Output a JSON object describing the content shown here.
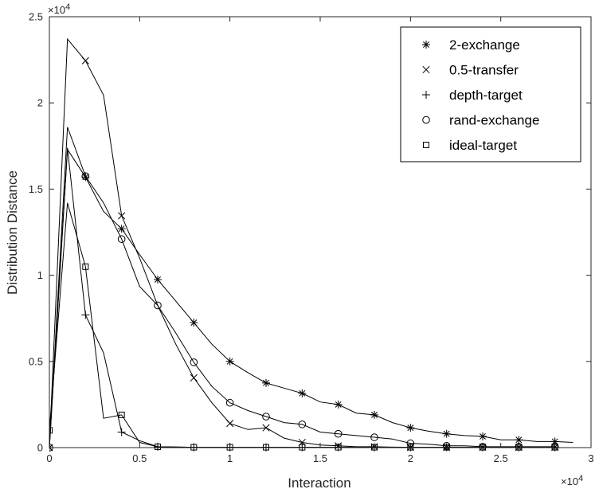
{
  "chart_data": {
    "type": "line",
    "title": "",
    "xlabel": "Interaction",
    "ylabel": "Distribution Distance",
    "xlim": [
      0,
      30000
    ],
    "ylim": [
      0,
      25000
    ],
    "x_tick_labels": [
      "0",
      "0.5",
      "1",
      "1.5",
      "2",
      "2.5",
      "3"
    ],
    "y_tick_labels": [
      "0",
      "0.5",
      "1",
      "1.5",
      "2",
      "2.5"
    ],
    "x_multiplier": "×10",
    "x_multiplier_exp": "4",
    "y_multiplier": "×10",
    "y_multiplier_exp": "4",
    "grid": false,
    "legend_position": "top-right",
    "series": [
      {
        "name": "2-exchange",
        "marker": "asterisk",
        "x": [
          0,
          1000,
          2000,
          3000,
          4000,
          5000,
          6000,
          7000,
          8000,
          9000,
          10000,
          11000,
          12000,
          13000,
          14000,
          15000,
          16000,
          17000,
          18000,
          19000,
          20000,
          21000,
          22000,
          23000,
          24000,
          25000,
          26000,
          27000,
          28000,
          29000
        ],
        "y": [
          0,
          17300,
          15700,
          13700,
          12700,
          11200,
          9750,
          8500,
          7250,
          6000,
          5000,
          4350,
          3750,
          3450,
          3150,
          2650,
          2500,
          2000,
          1900,
          1450,
          1150,
          950,
          800,
          700,
          650,
          450,
          450,
          350,
          350,
          300
        ],
        "marker_x": [
          0,
          2000,
          4000,
          6000,
          8000,
          10000,
          12000,
          14000,
          16000,
          18000,
          20000,
          22000,
          24000,
          26000,
          28000
        ],
        "marker_y": [
          0,
          15700,
          12700,
          9750,
          7250,
          5000,
          3750,
          3150,
          2500,
          1900,
          1150,
          800,
          650,
          450,
          350
        ]
      },
      {
        "name": "0.5-transfer",
        "marker": "x",
        "x": [
          0,
          1000,
          2000,
          3000,
          4000,
          5000,
          6000,
          7000,
          8000,
          9000,
          10000,
          11000,
          12000,
          13000,
          14000,
          15000,
          16000,
          17000,
          18000,
          19000,
          20000,
          21000,
          22000,
          23000,
          24000,
          25000,
          26000,
          27000,
          28000
        ],
        "y": [
          0,
          23700,
          22450,
          20450,
          13450,
          11000,
          8250,
          6000,
          4050,
          2600,
          1400,
          1050,
          1150,
          550,
          300,
          150,
          100,
          50,
          50,
          30,
          20,
          20,
          20,
          20,
          20,
          20,
          20,
          20,
          20
        ],
        "marker_x": [
          0,
          2000,
          4000,
          8000,
          10000,
          12000,
          14000,
          16000,
          18000,
          20000,
          22000,
          24000,
          26000,
          28000
        ],
        "marker_y": [
          0,
          22450,
          13450,
          4050,
          1400,
          1150,
          300,
          100,
          50,
          20,
          20,
          20,
          20,
          20
        ]
      },
      {
        "name": "depth-target",
        "marker": "plus",
        "x": [
          0,
          1000,
          2000,
          3000,
          4000,
          5000,
          6000,
          8000,
          10000,
          12000,
          14000,
          16000,
          18000,
          20000,
          22000,
          24000,
          26000,
          28000
        ],
        "y": [
          0,
          17400,
          7700,
          5500,
          900,
          400,
          50,
          20,
          20,
          20,
          20,
          20,
          20,
          20,
          20,
          20,
          20,
          20
        ],
        "marker_x": [
          0,
          2000,
          4000,
          6000,
          8000,
          10000,
          12000,
          14000,
          16000,
          18000,
          20000,
          22000,
          24000,
          26000,
          28000
        ],
        "marker_y": [
          0,
          7700,
          900,
          50,
          20,
          20,
          20,
          20,
          20,
          20,
          20,
          20,
          20,
          20,
          20
        ]
      },
      {
        "name": "rand-exchange",
        "marker": "circle",
        "x": [
          0,
          1000,
          2000,
          3000,
          4000,
          5000,
          6000,
          7000,
          8000,
          9000,
          10000,
          11000,
          12000,
          13000,
          14000,
          15000,
          16000,
          17000,
          18000,
          19000,
          20000,
          21000,
          22000,
          23000,
          24000,
          25000,
          26000,
          27000,
          28000
        ],
        "y": [
          0,
          18600,
          15750,
          14200,
          12100,
          9350,
          8250,
          6650,
          4950,
          3550,
          2600,
          2150,
          1800,
          1450,
          1350,
          900,
          800,
          700,
          600,
          500,
          250,
          200,
          100,
          100,
          50,
          50,
          50,
          50,
          50
        ],
        "marker_x": [
          0,
          2000,
          4000,
          6000,
          8000,
          10000,
          12000,
          14000,
          16000,
          18000,
          20000,
          22000,
          24000,
          26000,
          28000
        ],
        "marker_y": [
          0,
          15750,
          12100,
          8250,
          4950,
          2600,
          1800,
          1350,
          800,
          600,
          250,
          100,
          50,
          50,
          50
        ]
      },
      {
        "name": "ideal-target",
        "marker": "square",
        "x": [
          0,
          1000,
          2000,
          3000,
          4000,
          5000,
          6000,
          8000,
          10000,
          12000,
          14000,
          16000,
          18000,
          20000,
          22000,
          24000,
          26000,
          28000
        ],
        "y": [
          1000,
          14200,
          10500,
          1700,
          1900,
          300,
          50,
          20,
          20,
          20,
          20,
          20,
          20,
          20,
          20,
          20,
          20,
          20
        ],
        "marker_x": [
          0,
          2000,
          4000,
          6000,
          8000,
          10000,
          12000,
          14000,
          16000,
          18000,
          20000,
          22000,
          24000,
          26000,
          28000
        ],
        "marker_y": [
          1000,
          10500,
          1900,
          50,
          20,
          20,
          20,
          20,
          20,
          20,
          20,
          20,
          20,
          20,
          20
        ]
      }
    ]
  }
}
